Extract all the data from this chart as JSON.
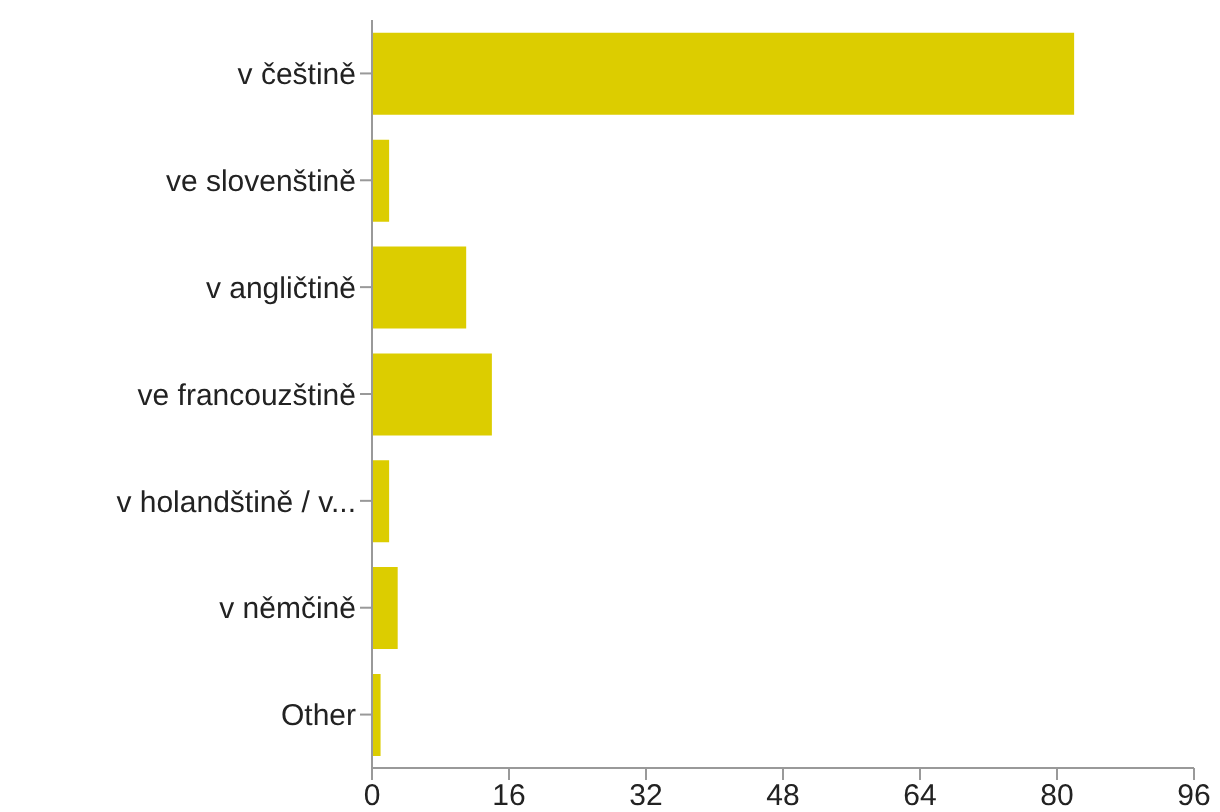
{
  "chart_data": {
    "type": "bar",
    "orientation": "horizontal",
    "categories": [
      "v češtině",
      "ve slovenštině",
      "v angličtině",
      "ve francouzštině",
      "v holandštině / v...",
      "v němčině",
      "Other"
    ],
    "values": [
      82,
      2,
      11,
      14,
      2,
      3,
      1
    ],
    "color": "#dccd00",
    "xlim": [
      0,
      96
    ],
    "xticks": [
      0,
      16,
      32,
      48,
      64,
      80,
      96
    ],
    "grid": false,
    "legend": false
  }
}
